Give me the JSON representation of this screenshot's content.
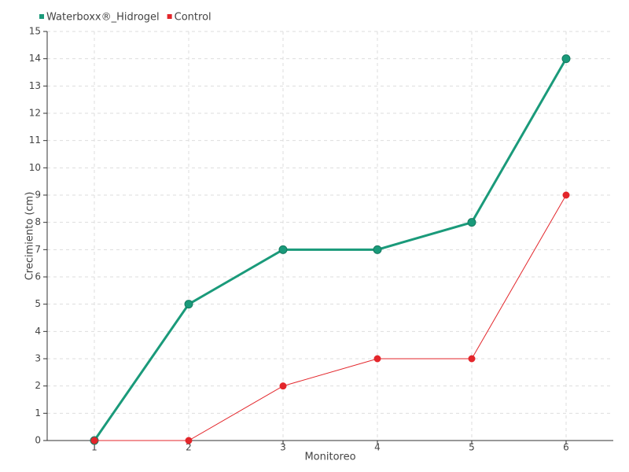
{
  "chart_data": {
    "type": "line",
    "xlabel": "Monitoreo",
    "ylabel": "Crecimiento (cm)",
    "categories": [
      "1",
      "2",
      "3",
      "4",
      "5",
      "6"
    ],
    "series": [
      {
        "name": "Waterboxx®_Hidrogel",
        "color": "#1a9a7a",
        "values": [
          0,
          5,
          7,
          7,
          8,
          14
        ]
      },
      {
        "name": "Control",
        "color": "#e3262b",
        "values": [
          0,
          0,
          2,
          3,
          3,
          9
        ]
      }
    ],
    "ylim": [
      0,
      15
    ],
    "yticks": [
      0,
      1,
      2,
      3,
      4,
      5,
      6,
      7,
      8,
      9,
      10,
      11,
      12,
      13,
      14,
      15
    ],
    "grid": true,
    "legend": "top-left"
  }
}
